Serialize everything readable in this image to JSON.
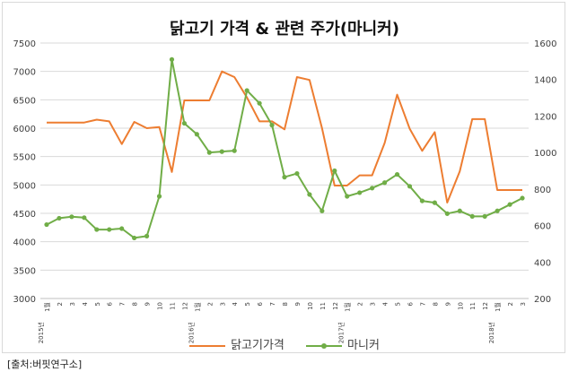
{
  "title": "닭고기 가격 & 관련 주가(마니커)",
  "source": "[출처:버핏연구소]",
  "colors": {
    "series1": "#ED7D31",
    "series2": "#70AD47",
    "grid": "#d9d9d9"
  },
  "chart_data": {
    "type": "line",
    "title": "닭고기 가격 & 관련 주가(마니커)",
    "x_labels": [
      "1월",
      "2",
      "3",
      "4",
      "5",
      "6",
      "7",
      "8",
      "9",
      "10",
      "11",
      "12",
      "1월",
      "2",
      "3",
      "4",
      "5",
      "6",
      "7",
      "8",
      "9",
      "10",
      "11",
      "12",
      "1월",
      "2",
      "3",
      "4",
      "5",
      "6",
      "7",
      "8",
      "9",
      "10",
      "11",
      "12",
      "1월",
      "2",
      "3"
    ],
    "year_labels": [
      {
        "index": 0,
        "label": "2015년"
      },
      {
        "index": 12,
        "label": "2016년"
      },
      {
        "index": 24,
        "label": "2017년"
      },
      {
        "index": 36,
        "label": "2018년"
      }
    ],
    "y_left": {
      "min": 3000,
      "max": 7500,
      "step": 500
    },
    "y_right": {
      "min": 200,
      "max": 1600,
      "step": 200
    },
    "grid": true,
    "legend_position": "bottom",
    "series": [
      {
        "name": "닭고기가격",
        "axis": "left",
        "marker": false,
        "values": [
          6100,
          6100,
          6100,
          6100,
          6150,
          6120,
          5720,
          6110,
          6000,
          6020,
          5230,
          6490,
          6490,
          6490,
          7000,
          6900,
          6540,
          6120,
          6120,
          5980,
          6900,
          6850,
          6000,
          4990,
          4990,
          5170,
          5170,
          5740,
          6590,
          5990,
          5600,
          5930,
          4690,
          5240,
          6160,
          6160,
          4910,
          4910,
          4910
        ]
      },
      {
        "name": "마니커",
        "axis": "right",
        "marker": true,
        "values": [
          605,
          640,
          648,
          643,
          578,
          578,
          583,
          532,
          542,
          760,
          1510,
          1160,
          1100,
          1000,
          1005,
          1010,
          1340,
          1270,
          1150,
          865,
          885,
          770,
          680,
          900,
          760,
          780,
          805,
          835,
          880,
          815,
          735,
          725,
          665,
          680,
          650,
          650,
          680,
          715,
          750
        ]
      }
    ]
  }
}
